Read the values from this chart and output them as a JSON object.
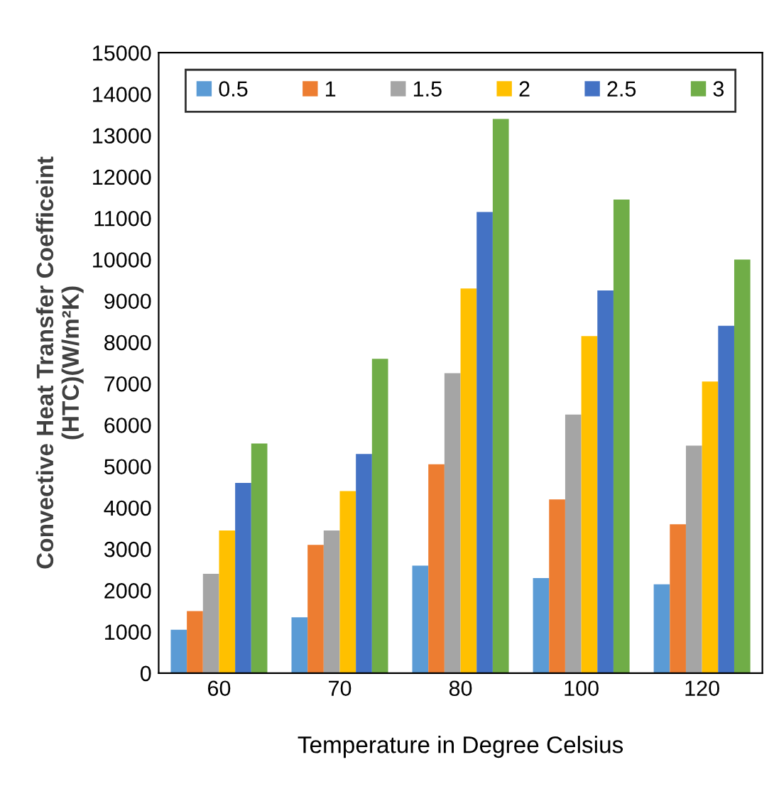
{
  "chart_data": {
    "type": "bar",
    "xlabel": "Temperature in Degree Celsius",
    "ylabel": "Convective Heat Transfer Coefficeint\n(HTC)(W/m²K)",
    "categories": [
      "60",
      "70",
      "80",
      "100",
      "120"
    ],
    "series": [
      {
        "name": "0.5",
        "color": "#5b9bd5",
        "values": [
          1050,
          1350,
          2600,
          2300,
          2150
        ]
      },
      {
        "name": "1",
        "color": "#ed7d31",
        "values": [
          1500,
          3100,
          5050,
          4200,
          3600
        ]
      },
      {
        "name": "1.5",
        "color": "#a5a5a5",
        "values": [
          2400,
          3450,
          7250,
          6250,
          5500
        ]
      },
      {
        "name": "2",
        "color": "#ffc000",
        "values": [
          3450,
          4400,
          9300,
          8150,
          7050
        ]
      },
      {
        "name": "2.5",
        "color": "#4472c4",
        "values": [
          4600,
          5300,
          11150,
          9250,
          8400
        ]
      },
      {
        "name": "3",
        "color": "#70ad47",
        "values": [
          5550,
          7600,
          13400,
          11450,
          10000
        ]
      }
    ],
    "ylim": [
      0,
      15000
    ],
    "yticks": [
      0,
      1000,
      2000,
      3000,
      4000,
      5000,
      6000,
      7000,
      8000,
      9000,
      10000,
      11000,
      12000,
      13000,
      14000,
      15000
    ],
    "grid": false,
    "legend": "top"
  }
}
